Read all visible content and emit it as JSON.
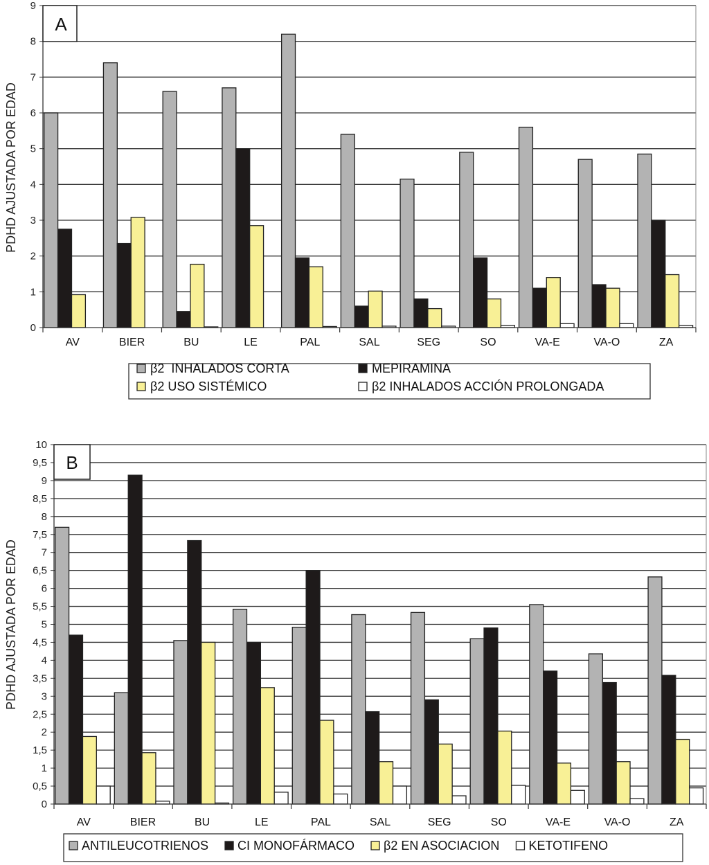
{
  "chart_data": [
    {
      "type": "bar",
      "panel_label": "A",
      "ylabel": "PDHD AJUSTADA POR EDAD",
      "xlabel": "",
      "ylim": [
        0,
        9
      ],
      "yticks": [
        "0",
        "1",
        "2",
        "3",
        "4",
        "5",
        "6",
        "7",
        "8",
        "9"
      ],
      "grid": true,
      "legend_position": "bottom",
      "categories": [
        "AV",
        "BIER",
        "BU",
        "LE",
        "PAL",
        "SAL",
        "SEG",
        "SO",
        "VA-E",
        "VA-O",
        "ZA"
      ],
      "series": [
        {
          "name": "β2  INHALADOS CORTA",
          "color": "#b3b3b3",
          "values": [
            6.0,
            7.4,
            6.6,
            6.7,
            8.2,
            5.4,
            4.15,
            4.9,
            5.6,
            4.7,
            4.85
          ]
        },
        {
          "name": "MEPIRAMINA",
          "color": "#1e1a1a",
          "values": [
            2.75,
            2.35,
            0.45,
            5.0,
            1.95,
            0.6,
            0.8,
            1.95,
            1.1,
            1.2,
            3.0
          ]
        },
        {
          "name": "β2 USO SISTÉMICO",
          "color": "#f8f096",
          "values": [
            0.92,
            3.08,
            1.77,
            2.85,
            1.7,
            1.02,
            0.53,
            0.8,
            1.4,
            1.1,
            1.48
          ]
        },
        {
          "name": "β2 INHALADOS ACCIÓN PROLONGADA",
          "color": "#ffffff",
          "values": [
            0.0,
            0.0,
            0.02,
            0.0,
            0.03,
            0.04,
            0.04,
            0.06,
            0.11,
            0.11,
            0.06
          ]
        }
      ]
    },
    {
      "type": "bar",
      "panel_label": "B",
      "ylabel": "PDHD AJUSTADA POR EDAD",
      "xlabel": "",
      "ylim": [
        0,
        10
      ],
      "yticks": [
        "0",
        "0,5",
        "1",
        "1,5",
        "2",
        "2,5",
        "3",
        "3,5",
        "4",
        "4,5",
        "5",
        "5,5",
        "6",
        "6,5",
        "7",
        "7,5",
        "8",
        "8,5",
        "9",
        "9,5",
        "10"
      ],
      "grid": true,
      "legend_position": "bottom",
      "categories": [
        "AV",
        "BIER",
        "BU",
        "LE",
        "PAL",
        "SAL",
        "SEG",
        "SO",
        "VA-E",
        "VA-O",
        "ZA"
      ],
      "series": [
        {
          "name": "ANTILEUCOTRIENOS",
          "color": "#b3b3b3",
          "values": [
            7.7,
            3.1,
            4.55,
            5.42,
            4.92,
            5.27,
            5.33,
            4.6,
            5.55,
            4.18,
            6.32
          ]
        },
        {
          "name": "CI MONOFÁRMACO",
          "color": "#1e1a1a",
          "values": [
            4.7,
            9.15,
            7.33,
            4.5,
            6.5,
            2.57,
            2.9,
            4.9,
            3.7,
            3.38,
            3.58
          ]
        },
        {
          "name": "β2 EN ASOCIACION",
          "color": "#f8f096",
          "values": [
            1.88,
            1.43,
            4.5,
            3.24,
            2.33,
            1.18,
            1.67,
            2.03,
            1.14,
            1.18,
            1.8
          ]
        },
        {
          "name": "KETOTIFENO",
          "color": "#ffffff",
          "values": [
            0.5,
            0.08,
            0.03,
            0.33,
            0.28,
            0.5,
            0.23,
            0.52,
            0.38,
            0.15,
            0.45
          ]
        }
      ]
    }
  ]
}
